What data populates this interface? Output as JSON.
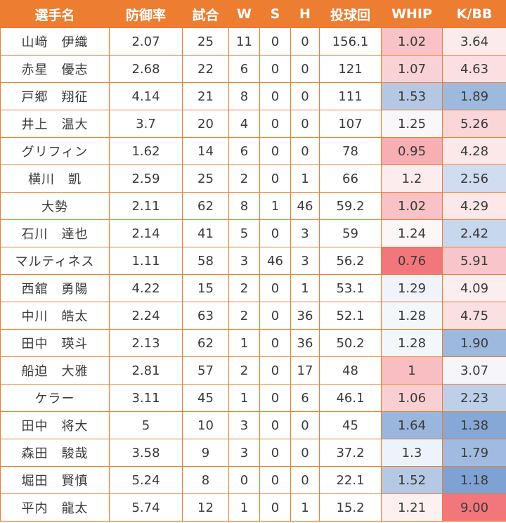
{
  "table": {
    "header_color": "#ED7D31",
    "columns": [
      "選手名",
      "防御率",
      "試合",
      "W",
      "S",
      "H",
      "投球回",
      "WHIP",
      "K/BB"
    ],
    "rows": [
      {
        "name": "山﨑　伊織",
        "era": "2.07",
        "games": "25",
        "w": "11",
        "s": "0",
        "h": "0",
        "ip": "156.1",
        "whip": "1.02",
        "kbb": "3.64",
        "whip_bg": "#F8C2C6",
        "kbb_bg": "#FCEBEC"
      },
      {
        "name": "赤星　優志",
        "era": "2.68",
        "games": "22",
        "w": "6",
        "s": "0",
        "h": "0",
        "ip": "121",
        "whip": "1.07",
        "kbb": "4.63",
        "whip_bg": "#F9D2D5",
        "kbb_bg": "#FBE0E2"
      },
      {
        "name": "戸郷　翔征",
        "era": "4.14",
        "games": "21",
        "w": "8",
        "s": "0",
        "h": "0",
        "ip": "111",
        "whip": "1.53",
        "kbb": "1.89",
        "whip_bg": "#B4C8E4",
        "kbb_bg": "#9DB9DE"
      },
      {
        "name": "井上　温大",
        "era": "3.7",
        "games": "20",
        "w": "4",
        "s": "0",
        "h": "0",
        "ip": "107",
        "whip": "1.25",
        "kbb": "5.26",
        "whip_bg": "#FAF7FA",
        "kbb_bg": "#FAD6D9"
      },
      {
        "name": "グリフィン",
        "era": "1.62",
        "games": "14",
        "w": "6",
        "s": "0",
        "h": "0",
        "ip": "78",
        "whip": "0.95",
        "kbb": "4.28",
        "whip_bg": "#F7AFB3",
        "kbb_bg": "#FCE7E9"
      },
      {
        "name": "横川　凱",
        "era": "2.59",
        "games": "25",
        "w": "2",
        "s": "0",
        "h": "1",
        "ip": "66",
        "whip": "1.2",
        "kbb": "2.56",
        "whip_bg": "#FCECEE",
        "kbb_bg": "#D0DCEF"
      },
      {
        "name": "大勢",
        "era": "2.11",
        "games": "62",
        "w": "8",
        "s": "1",
        "h": "46",
        "ip": "59.2",
        "whip": "1.02",
        "kbb": "4.29",
        "whip_bg": "#F8C2C6",
        "kbb_bg": "#FCE7E9"
      },
      {
        "name": "石川　達也",
        "era": "2.14",
        "games": "41",
        "w": "5",
        "s": "0",
        "h": "3",
        "ip": "59",
        "whip": "1.24",
        "kbb": "2.42",
        "whip_bg": "#FCF6F7",
        "kbb_bg": "#C7D7ED"
      },
      {
        "name": "マルティネス",
        "era": "1.11",
        "games": "58",
        "w": "3",
        "s": "46",
        "h": "3",
        "ip": "56.2",
        "whip": "0.76",
        "kbb": "5.91",
        "whip_bg": "#F2777C",
        "kbb_bg": "#F8C6CA"
      },
      {
        "name": "西舘　勇陽",
        "era": "4.22",
        "games": "15",
        "w": "2",
        "s": "0",
        "h": "1",
        "ip": "53.1",
        "whip": "1.29",
        "kbb": "4.09",
        "whip_bg": "#F0F3FA",
        "kbb_bg": "#FCEDEE"
      },
      {
        "name": "中川　皓太",
        "era": "2.24",
        "games": "63",
        "w": "2",
        "s": "0",
        "h": "36",
        "ip": "52.1",
        "whip": "1.28",
        "kbb": "4.75",
        "whip_bg": "#F3F6FB",
        "kbb_bg": "#FBE0E2"
      },
      {
        "name": "田中　瑛斗",
        "era": "2.13",
        "games": "62",
        "w": "1",
        "s": "0",
        "h": "36",
        "ip": "50.2",
        "whip": "1.28",
        "kbb": "1.90",
        "whip_bg": "#F3F6FB",
        "kbb_bg": "#9DB9DE"
      },
      {
        "name": "船迫　大雅",
        "era": "2.81",
        "games": "57",
        "w": "2",
        "s": "0",
        "h": "17",
        "ip": "48",
        "whip": "1",
        "kbb": "3.07",
        "whip_bg": "#F8BEC2",
        "kbb_bg": "#F6F5FA"
      },
      {
        "name": "ケラー",
        "era": "3.11",
        "games": "45",
        "w": "1",
        "s": "0",
        "h": "6",
        "ip": "46.1",
        "whip": "1.06",
        "kbb": "2.23",
        "whip_bg": "#F9CFD2",
        "kbb_bg": "#BDCFE9"
      },
      {
        "name": "田中　将大",
        "era": "5",
        "games": "10",
        "w": "3",
        "s": "0",
        "h": "0",
        "ip": "45",
        "whip": "1.64",
        "kbb": "1.38",
        "whip_bg": "#9AB6DD",
        "kbb_bg": "#85A8D6"
      },
      {
        "name": "森田　駿哉",
        "era": "3.58",
        "games": "9",
        "w": "3",
        "s": "0",
        "h": "0",
        "ip": "37.2",
        "whip": "1.3",
        "kbb": "1.79",
        "whip_bg": "#EEF2FA",
        "kbb_bg": "#A0BBDF"
      },
      {
        "name": "堀田　賢慎",
        "era": "5.24",
        "games": "8",
        "w": "0",
        "s": "0",
        "h": "0",
        "ip": "22.1",
        "whip": "1.52",
        "kbb": "1.18",
        "whip_bg": "#B5C9E5",
        "kbb_bg": "#7EA2D3"
      },
      {
        "name": "平内　龍太",
        "era": "5.74",
        "games": "12",
        "w": "1",
        "s": "0",
        "h": "1",
        "ip": "15.2",
        "whip": "1.21",
        "kbb": "9.00",
        "whip_bg": "#FCF0F1",
        "kbb_bg": "#F2777C"
      }
    ]
  }
}
